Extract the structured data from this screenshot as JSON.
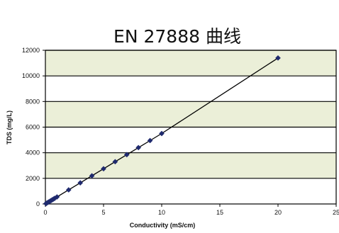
{
  "chart_data": {
    "type": "line",
    "title": "EN 27888 曲线",
    "xlabel": "Conductivity (mS/cm)",
    "ylabel": "TDS (mg/L)",
    "xlim": [
      0,
      25
    ],
    "ylim": [
      0,
      12000
    ],
    "x_ticks": [
      0,
      5,
      10,
      15,
      20,
      25
    ],
    "y_ticks": [
      0,
      2000,
      4000,
      6000,
      8000,
      10000,
      12000
    ],
    "grid": "horizontal",
    "legend": "none",
    "series": [
      {
        "x": [
          0.05,
          0.1,
          0.2,
          0.3,
          0.4,
          0.5,
          0.6,
          0.7,
          0.8,
          1.0,
          2.0,
          3.0,
          4.0,
          5.0,
          6.0,
          7.0,
          8.0,
          9.0,
          10.0,
          20.0
        ],
        "y": [
          28,
          56,
          112,
          165,
          220,
          275,
          330,
          385,
          440,
          550,
          1100,
          1650,
          2200,
          2750,
          3300,
          3850,
          4400,
          4950,
          5500,
          11400
        ],
        "marker": "diamond"
      }
    ],
    "colors": {
      "series": "#1f2a6e",
      "band_fill": "#ebefd8",
      "gridline": "#000000",
      "axis": "#000000"
    }
  }
}
